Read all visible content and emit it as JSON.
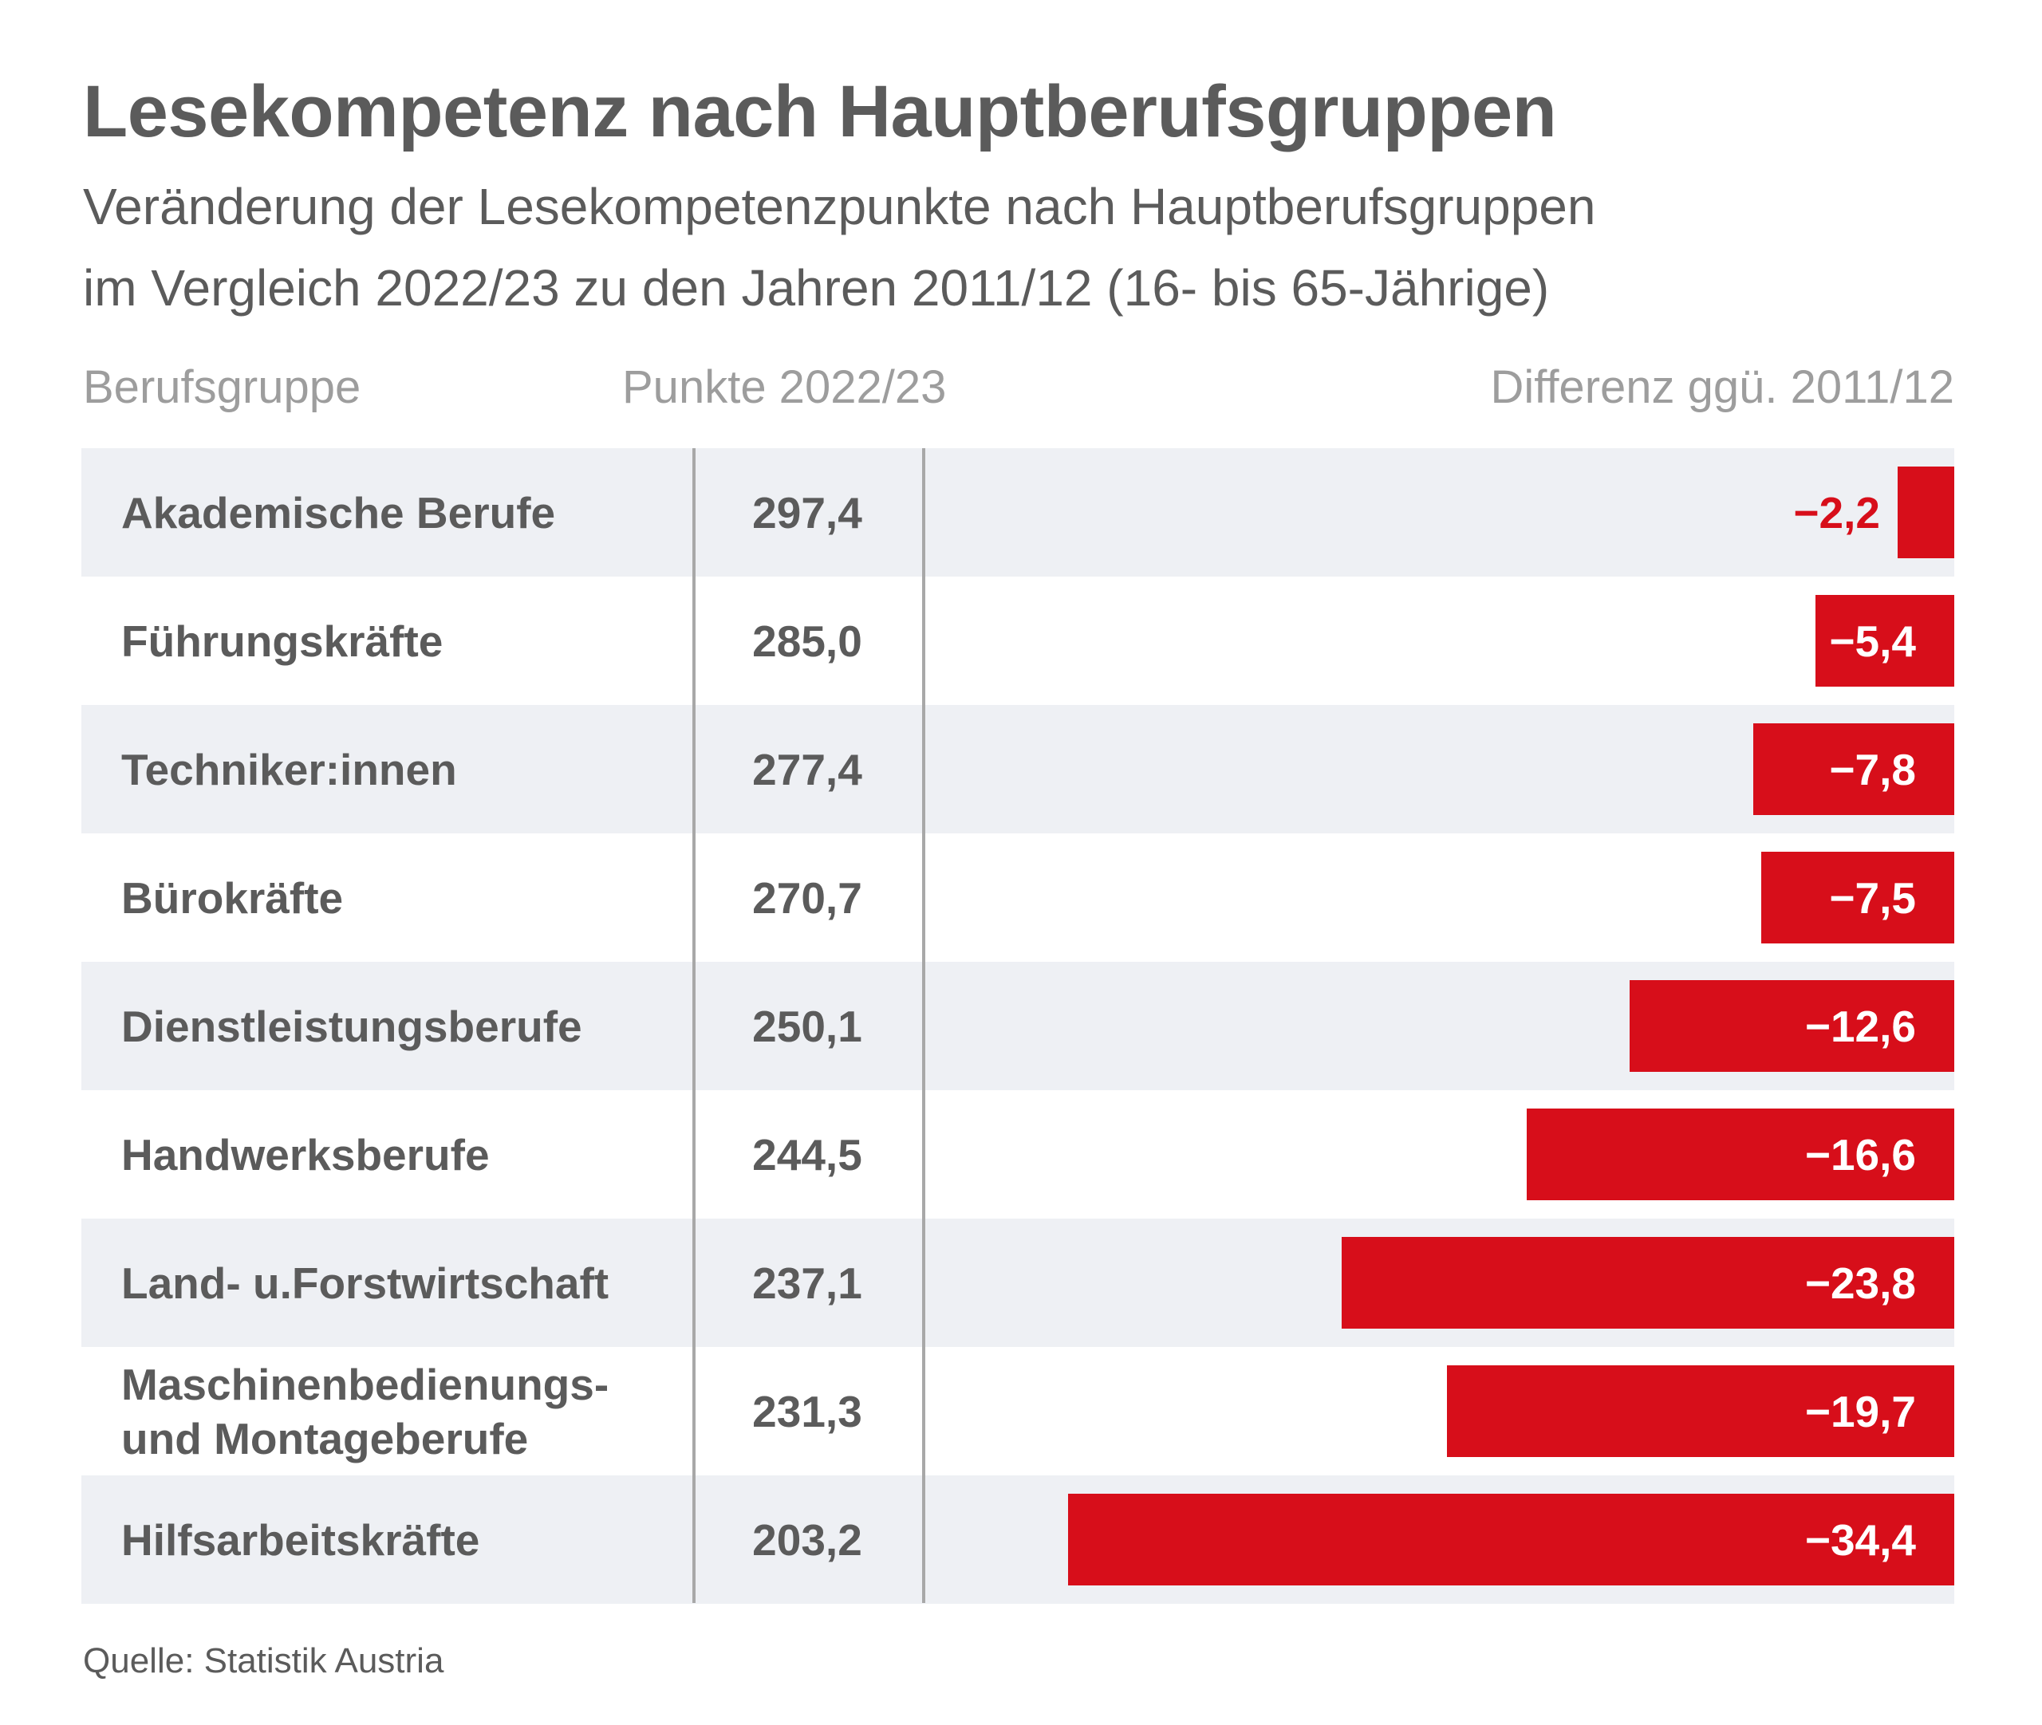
{
  "header": {
    "title": "Lesekompetenz nach Hauptberufsgruppen",
    "subtitle_line1": "Veränderung der Lesekompetenzpunkte nach Hauptberufsgruppen",
    "subtitle_line2": "im Vergleich 2022/23 zu den Jahren 2011/12 (16- bis 65-Jährige)"
  },
  "columns": {
    "category": "Berufsgruppe",
    "points": "Punkte 2022/23",
    "difference": "Differenz ggü. 2011/12"
  },
  "colors": {
    "bar": "#d70e1a",
    "row_shade": "#eef0f4",
    "text": "#5b5b5b"
  },
  "chart_data": {
    "type": "bar",
    "orientation": "horizontal",
    "categories": [
      "Akademische Berufe",
      "Führungskräfte",
      "Techniker:innen",
      "Bürokräfte",
      "Dienstleistungsberufe",
      "Handwerksberufe",
      "Land- u.Forstwirtschaft",
      "Maschinenbedienungs-\nund Montageberufe",
      "Hilfsarbeitskräfte"
    ],
    "points_2022_23": [
      "297,4",
      "285,0",
      "277,4",
      "270,7",
      "250,1",
      "244,5",
      "237,1",
      "231,3",
      "203,2"
    ],
    "values": [
      -2.2,
      -5.4,
      -7.8,
      -7.5,
      -12.6,
      -16.6,
      -23.8,
      -19.7,
      -34.4
    ],
    "value_labels": [
      "−2,2",
      "−5,4",
      "−7,8",
      "−7,5",
      "−12,6",
      "−16,6",
      "−23,8",
      "−19,7",
      "−34,4"
    ],
    "xlim": [
      -35,
      0
    ],
    "grid": false,
    "legend": "none"
  },
  "footer": {
    "source": "Quelle: Statistik Austria"
  }
}
